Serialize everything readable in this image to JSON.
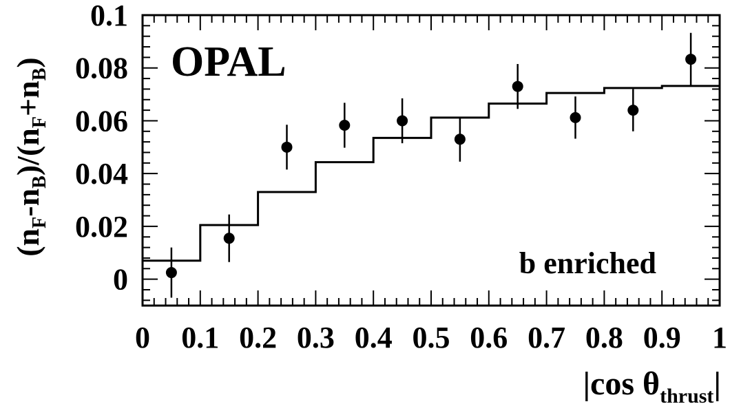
{
  "chart_data": {
    "type": "scatter",
    "xlabel_parts": [
      "|cos θ",
      "thrust",
      "|"
    ],
    "ylabel_parts": [
      "(n",
      "F",
      "-n",
      "B",
      ")/(n",
      "F",
      "+n",
      "B",
      ")"
    ],
    "experiment_label": "OPAL",
    "annotation": "b enriched",
    "xlim": [
      0,
      1
    ],
    "ylim": [
      -0.01,
      0.1
    ],
    "x_ticks": [
      0,
      0.1,
      0.2,
      0.3,
      0.4,
      0.5,
      0.6,
      0.7,
      0.8,
      0.9,
      1
    ],
    "x_tick_labels": [
      "0",
      "0.1",
      "0.2",
      "0.3",
      "0.4",
      "0.5",
      "0.6",
      "0.7",
      "0.8",
      "0.9",
      "1"
    ],
    "y_ticks": [
      0,
      0.02,
      0.04,
      0.06,
      0.08,
      0.1
    ],
    "y_tick_labels": [
      "0",
      "0.02",
      "0.04",
      "0.06",
      "0.08",
      "0.1"
    ],
    "grid": false,
    "data": {
      "name": "Data",
      "x": [
        0.05,
        0.15,
        0.25,
        0.35,
        0.45,
        0.55,
        0.65,
        0.75,
        0.85,
        0.95
      ],
      "y": [
        0.0025,
        0.0155,
        0.05,
        0.0583,
        0.06,
        0.053,
        0.073,
        0.0612,
        0.064,
        0.0833
      ],
      "err": [
        0.0095,
        0.009,
        0.0085,
        0.0085,
        0.0085,
        0.0085,
        0.0085,
        0.008,
        0.008,
        0.01
      ]
    },
    "prediction": {
      "type": "step",
      "edges": [
        0,
        0.1,
        0.2,
        0.3,
        0.4,
        0.5,
        0.6,
        0.7,
        0.8,
        0.9,
        1.0
      ],
      "values": [
        0.007,
        0.0205,
        0.033,
        0.0443,
        0.0535,
        0.0612,
        0.0665,
        0.0705,
        0.0724,
        0.0732
      ]
    }
  }
}
